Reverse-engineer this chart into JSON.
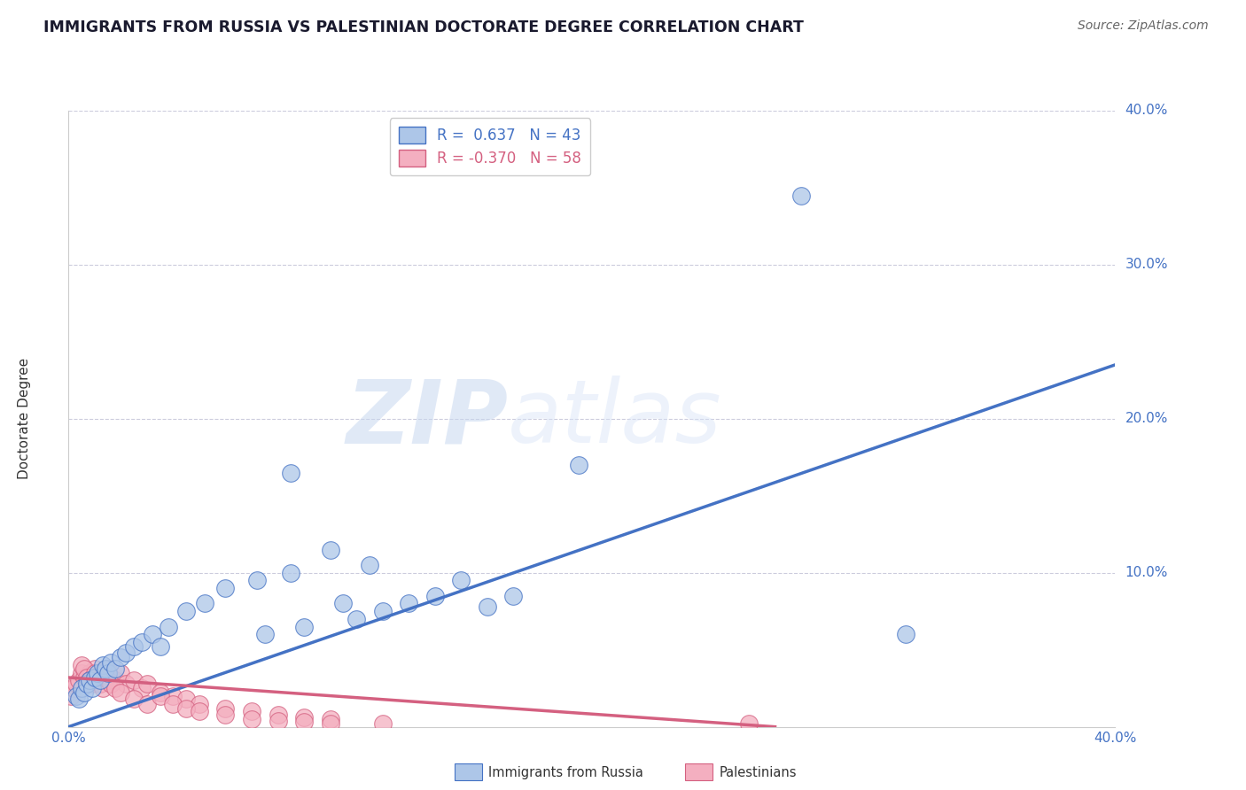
{
  "title": "IMMIGRANTS FROM RUSSIA VS PALESTINIAN DOCTORATE DEGREE CORRELATION CHART",
  "source": "Source: ZipAtlas.com",
  "ylabel": "Doctorate Degree",
  "xlim": [
    0.0,
    0.4
  ],
  "ylim": [
    0.0,
    0.4
  ],
  "ytick_positions": [
    0.1,
    0.2,
    0.3,
    0.4
  ],
  "ytick_labels": [
    "10.0%",
    "20.0%",
    "30.0%",
    "40.0%"
  ],
  "russia_color": "#adc6e8",
  "palest_color": "#f4afc0",
  "russia_line_color": "#4472c4",
  "palest_line_color": "#d46080",
  "grid_color": "#ccccdd",
  "watermark_zip": "ZIP",
  "watermark_atlas": "atlas",
  "watermark_color": "#d0daf0",
  "background_color": "#ffffff",
  "russia_R": 0.637,
  "palest_R": -0.37,
  "russia_N": 43,
  "palest_N": 58,
  "russia_scatter_x": [
    0.003,
    0.004,
    0.005,
    0.006,
    0.007,
    0.008,
    0.009,
    0.01,
    0.011,
    0.012,
    0.013,
    0.014,
    0.015,
    0.016,
    0.018,
    0.02,
    0.022,
    0.025,
    0.028,
    0.032,
    0.038,
    0.045,
    0.052,
    0.06,
    0.072,
    0.085,
    0.1,
    0.115,
    0.13,
    0.15,
    0.17,
    0.195,
    0.085,
    0.105,
    0.12,
    0.28,
    0.32,
    0.075,
    0.09,
    0.11,
    0.14,
    0.16,
    0.035
  ],
  "russia_scatter_y": [
    0.02,
    0.018,
    0.025,
    0.022,
    0.028,
    0.03,
    0.025,
    0.032,
    0.035,
    0.03,
    0.04,
    0.038,
    0.035,
    0.042,
    0.038,
    0.045,
    0.048,
    0.052,
    0.055,
    0.06,
    0.065,
    0.075,
    0.08,
    0.09,
    0.095,
    0.1,
    0.115,
    0.105,
    0.08,
    0.095,
    0.085,
    0.17,
    0.165,
    0.08,
    0.075,
    0.345,
    0.06,
    0.06,
    0.065,
    0.07,
    0.085,
    0.078,
    0.052
  ],
  "palest_scatter_x": [
    0.001,
    0.002,
    0.003,
    0.004,
    0.005,
    0.006,
    0.007,
    0.008,
    0.009,
    0.01,
    0.011,
    0.012,
    0.013,
    0.014,
    0.015,
    0.016,
    0.018,
    0.02,
    0.022,
    0.025,
    0.028,
    0.03,
    0.035,
    0.04,
    0.045,
    0.05,
    0.06,
    0.07,
    0.08,
    0.09,
    0.1,
    0.005,
    0.006,
    0.007,
    0.008,
    0.009,
    0.01,
    0.011,
    0.012,
    0.013,
    0.014,
    0.015,
    0.016,
    0.018,
    0.02,
    0.025,
    0.03,
    0.035,
    0.04,
    0.045,
    0.05,
    0.06,
    0.07,
    0.08,
    0.09,
    0.1,
    0.12,
    0.26
  ],
  "palest_scatter_y": [
    0.02,
    0.025,
    0.028,
    0.03,
    0.035,
    0.032,
    0.028,
    0.035,
    0.03,
    0.038,
    0.032,
    0.028,
    0.035,
    0.03,
    0.038,
    0.032,
    0.03,
    0.035,
    0.028,
    0.03,
    0.025,
    0.028,
    0.022,
    0.02,
    0.018,
    0.015,
    0.012,
    0.01,
    0.008,
    0.006,
    0.005,
    0.04,
    0.038,
    0.032,
    0.03,
    0.028,
    0.035,
    0.03,
    0.028,
    0.025,
    0.032,
    0.03,
    0.028,
    0.025,
    0.022,
    0.018,
    0.015,
    0.02,
    0.015,
    0.012,
    0.01,
    0.008,
    0.005,
    0.004,
    0.003,
    0.002,
    0.002,
    0.002
  ],
  "russia_line_x0": 0.0,
  "russia_line_y0": 0.0,
  "russia_line_x1": 0.4,
  "russia_line_y1": 0.235,
  "palest_line_x0": 0.0,
  "palest_line_y0": 0.032,
  "palest_line_x1": 0.27,
  "palest_line_y1": 0.0
}
